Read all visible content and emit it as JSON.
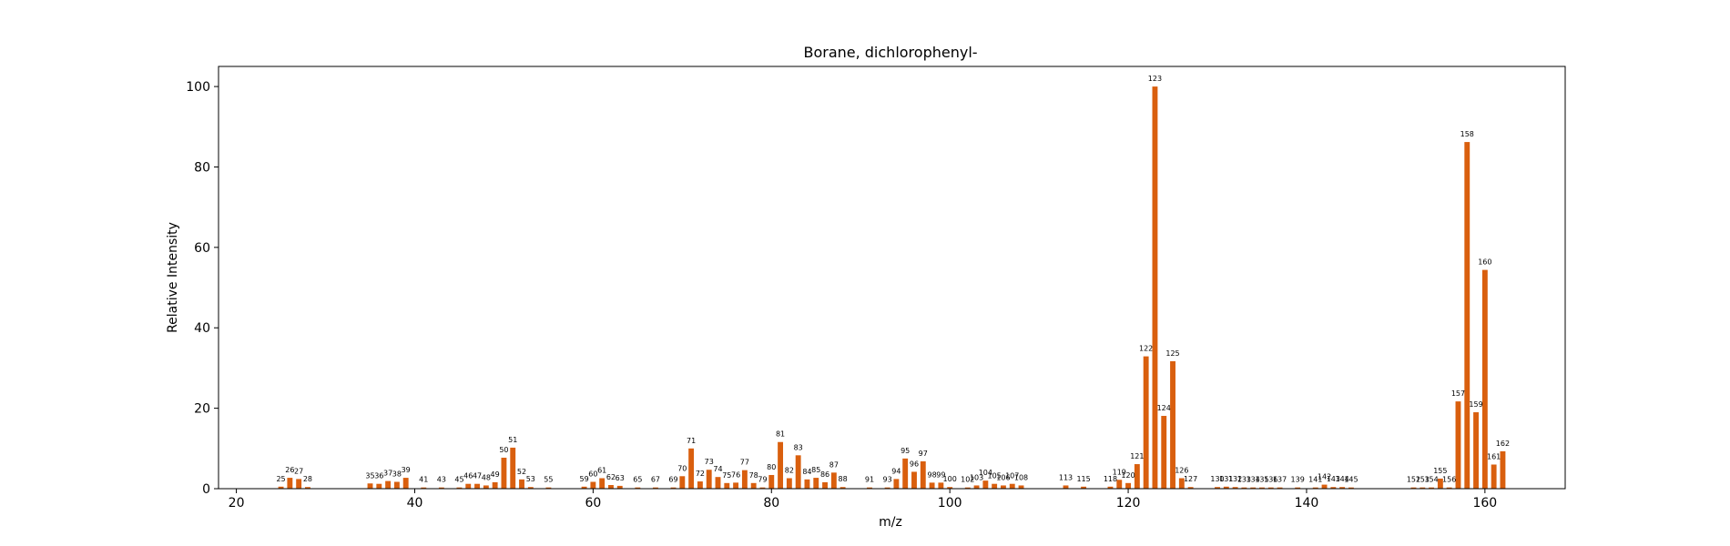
{
  "chart_data": {
    "type": "bar",
    "title": "Borane, dichlorophenyl-",
    "xlabel": "m/z",
    "ylabel": "Relative Intensity",
    "xlim": [
      18,
      169
    ],
    "ylim": [
      0,
      105
    ],
    "xticks": [
      20,
      40,
      60,
      80,
      100,
      120,
      140,
      160
    ],
    "yticks": [
      0,
      20,
      40,
      60,
      80,
      100
    ],
    "grid": false,
    "bar_color": "#d95f0e",
    "x": [
      25,
      26,
      27,
      28,
      35,
      36,
      37,
      38,
      39,
      41,
      43,
      45,
      46,
      47,
      48,
      49,
      50,
      51,
      52,
      53,
      55,
      59,
      60,
      61,
      62,
      63,
      65,
      67,
      69,
      70,
      71,
      72,
      73,
      74,
      75,
      76,
      77,
      78,
      79,
      80,
      81,
      82,
      83,
      84,
      85,
      86,
      87,
      88,
      91,
      93,
      94,
      95,
      96,
      97,
      98,
      99,
      100,
      102,
      103,
      104,
      105,
      106,
      107,
      108,
      113,
      115,
      118,
      119,
      120,
      121,
      122,
      123,
      124,
      125,
      126,
      127,
      130,
      131,
      132,
      133,
      134,
      135,
      136,
      137,
      139,
      141,
      142,
      143,
      144,
      145,
      152,
      153,
      154,
      155,
      156,
      157,
      158,
      159,
      160,
      161,
      162
    ],
    "values": [
      0.5,
      2.7,
      2.4,
      0.4,
      1.3,
      1.2,
      1.9,
      1.7,
      2.7,
      0.3,
      0.3,
      0.3,
      1.2,
      1.2,
      0.8,
      1.6,
      7.7,
      10.2,
      2.3,
      0.4,
      0.3,
      0.5,
      1.7,
      2.6,
      0.9,
      0.7,
      0.3,
      0.3,
      0.3,
      3.1,
      10.0,
      1.8,
      4.7,
      2.9,
      1.4,
      1.5,
      4.6,
      1.4,
      0.3,
      3.4,
      11.6,
      2.6,
      8.3,
      2.3,
      2.7,
      1.6,
      4.0,
      0.4,
      0.3,
      0.3,
      2.4,
      7.5,
      4.2,
      6.8,
      1.5,
      1.5,
      0.4,
      0.3,
      0.8,
      2.0,
      1.2,
      0.8,
      1.2,
      0.8,
      0.8,
      0.5,
      0.5,
      2.2,
      1.4,
      6.1,
      32.9,
      100.0,
      18.1,
      31.7,
      2.6,
      0.4,
      0.4,
      0.5,
      0.4,
      0.3,
      0.3,
      0.3,
      0.3,
      0.3,
      0.3,
      0.3,
      1.0,
      0.4,
      0.4,
      0.3,
      0.3,
      0.3,
      0.3,
      2.5,
      0.3,
      21.7,
      86.2,
      19.0,
      54.4,
      6.0,
      9.3
    ]
  }
}
